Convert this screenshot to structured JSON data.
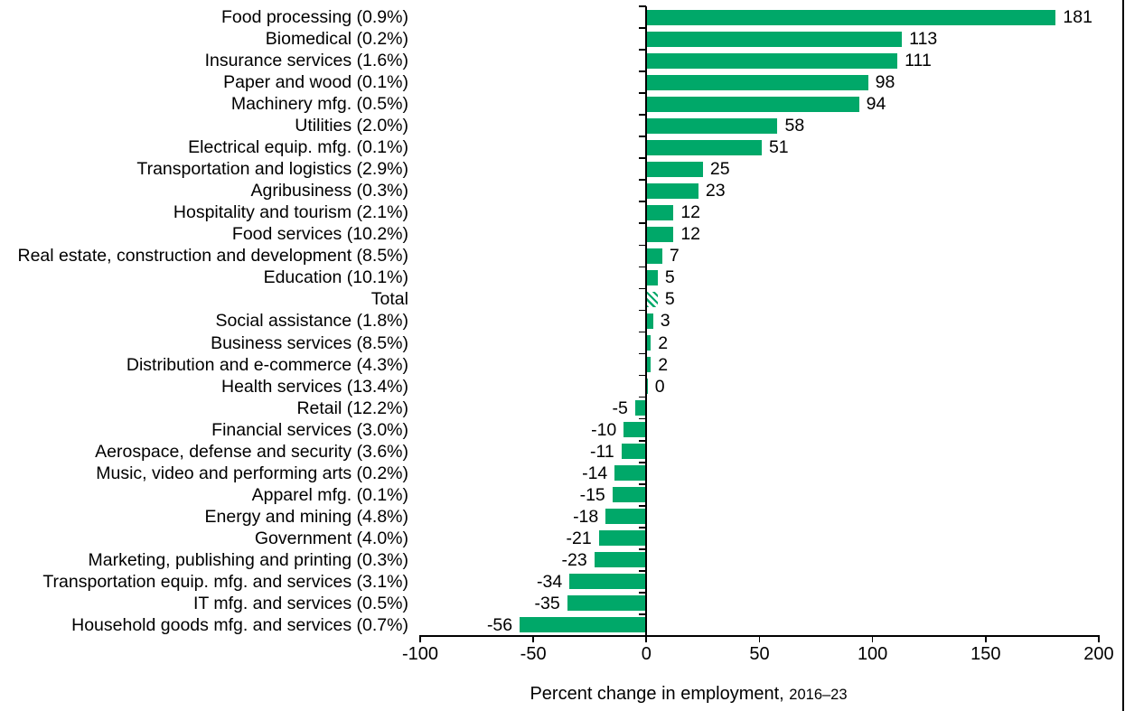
{
  "chart_data": {
    "type": "bar",
    "orientation": "horizontal",
    "xlabel_main": "Percent change in employment,",
    "xlabel_period": "2016–23",
    "xlim": [
      -100,
      200
    ],
    "x_ticks": [
      -100,
      -50,
      0,
      50,
      100,
      150,
      200
    ],
    "x_tick_labels": [
      "-100",
      "-50",
      "0",
      "50",
      "100",
      "150",
      "200"
    ],
    "bar_color": "#00a869",
    "grid": false,
    "legend": false,
    "items": [
      {
        "label": "Food processing (0.9%)",
        "value": 181,
        "hatched": false
      },
      {
        "label": "Biomedical (0.2%)",
        "value": 113,
        "hatched": false
      },
      {
        "label": "Insurance services (1.6%)",
        "value": 111,
        "hatched": false
      },
      {
        "label": "Paper and wood (0.1%)",
        "value": 98,
        "hatched": false
      },
      {
        "label": "Machinery mfg. (0.5%)",
        "value": 94,
        "hatched": false
      },
      {
        "label": "Utilities (2.0%)",
        "value": 58,
        "hatched": false
      },
      {
        "label": "Electrical equip. mfg. (0.1%)",
        "value": 51,
        "hatched": false
      },
      {
        "label": "Transportation and logistics (2.9%)",
        "value": 25,
        "hatched": false
      },
      {
        "label": "Agribusiness (0.3%)",
        "value": 23,
        "hatched": false
      },
      {
        "label": "Hospitality and tourism (2.1%)",
        "value": 12,
        "hatched": false
      },
      {
        "label": "Food services (10.2%)",
        "value": 12,
        "hatched": false
      },
      {
        "label": "Real estate, construction and development (8.5%)",
        "value": 7,
        "hatched": false
      },
      {
        "label": "Education (10.1%)",
        "value": 5,
        "hatched": false
      },
      {
        "label": "Total",
        "value": 5,
        "hatched": true
      },
      {
        "label": "Social assistance (1.8%)",
        "value": 3,
        "hatched": false
      },
      {
        "label": "Business services (8.5%)",
        "value": 2,
        "hatched": false
      },
      {
        "label": "Distribution and e-commerce (4.3%)",
        "value": 2,
        "hatched": false
      },
      {
        "label": "Health services (13.4%)",
        "value": 0,
        "hatched": false
      },
      {
        "label": "Retail (12.2%)",
        "value": -5,
        "hatched": false
      },
      {
        "label": "Financial services (3.0%)",
        "value": -10,
        "hatched": false
      },
      {
        "label": "Aerospace, defense and security (3.6%)",
        "value": -11,
        "hatched": false
      },
      {
        "label": "Music, video and performing arts (0.2%)",
        "value": -14,
        "hatched": false
      },
      {
        "label": "Apparel mfg. (0.1%)",
        "value": -15,
        "hatched": false
      },
      {
        "label": "Energy and mining (4.8%)",
        "value": -18,
        "hatched": false
      },
      {
        "label": "Government (4.0%)",
        "value": -21,
        "hatched": false
      },
      {
        "label": "Marketing, publishing and printing (0.3%)",
        "value": -23,
        "hatched": false
      },
      {
        "label": "Transportation equip. mfg. and services (3.1%)",
        "value": -34,
        "hatched": false
      },
      {
        "label": "IT mfg. and services (0.5%)",
        "value": -35,
        "hatched": false
      },
      {
        "label": "Household goods mfg. and services (0.7%)",
        "value": -56,
        "hatched": false
      }
    ]
  }
}
